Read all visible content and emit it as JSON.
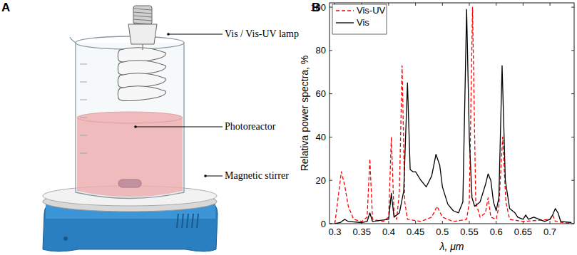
{
  "panel_labels": [
    "A",
    "B"
  ],
  "diagram": {
    "labels": [
      "Vis / Vis-UV lamp",
      "Photoreactor",
      "Magnetic stirrer"
    ]
  },
  "chart_data": {
    "type": "line",
    "x_label": "λ, μm",
    "y_label": "Relativa power spectra, %",
    "xlim": [
      0.29,
      0.745
    ],
    "ylim": [
      0,
      102
    ],
    "xticks": [
      0.3,
      0.35,
      0.4,
      0.45,
      0.5,
      0.55,
      0.6,
      0.65,
      0.7
    ],
    "yticks": [
      0,
      20,
      40,
      60,
      80,
      100
    ],
    "legend": "upper left",
    "grid": false,
    "series": [
      {
        "name": "Vis-UV",
        "color": "#ff0000",
        "line_style": "dashed",
        "x": [
          0.3,
          0.305,
          0.312,
          0.318,
          0.325,
          0.335,
          0.35,
          0.36,
          0.365,
          0.37,
          0.39,
          0.4,
          0.405,
          0.41,
          0.415,
          0.42,
          0.425,
          0.43,
          0.435,
          0.46,
          0.48,
          0.49,
          0.5,
          0.52,
          0.545,
          0.55,
          0.556,
          0.562,
          0.57,
          0.58,
          0.585,
          0.59,
          0.6,
          0.605,
          0.612,
          0.618,
          0.625,
          0.65,
          0.7,
          0.705,
          0.71,
          0.74
        ],
        "values": [
          0,
          10,
          24,
          18,
          8,
          2,
          1,
          3,
          30,
          2,
          1,
          3,
          40,
          4,
          2,
          15,
          73,
          10,
          2,
          1,
          3,
          8,
          3,
          1,
          2,
          10,
          100,
          10,
          3,
          5,
          12,
          3,
          2,
          8,
          40,
          10,
          2,
          1,
          2,
          4,
          1,
          0
        ]
      },
      {
        "name": "Vis",
        "color": "#000000",
        "line_style": "solid",
        "x": [
          0.3,
          0.31,
          0.318,
          0.325,
          0.35,
          0.36,
          0.365,
          0.37,
          0.4,
          0.405,
          0.41,
          0.42,
          0.428,
          0.435,
          0.44,
          0.445,
          0.45,
          0.46,
          0.47,
          0.48,
          0.488,
          0.495,
          0.5,
          0.51,
          0.52,
          0.53,
          0.538,
          0.545,
          0.55,
          0.555,
          0.56,
          0.57,
          0.58,
          0.585,
          0.59,
          0.595,
          0.6,
          0.605,
          0.611,
          0.617,
          0.625,
          0.635,
          0.64,
          0.65,
          0.655,
          0.66,
          0.67,
          0.68,
          0.69,
          0.7,
          0.705,
          0.71,
          0.715,
          0.72,
          0.74
        ],
        "values": [
          0,
          0.5,
          2,
          1,
          0.5,
          1,
          5,
          1,
          2,
          14,
          3,
          5,
          15,
          65,
          25,
          24,
          24,
          20,
          17,
          22,
          32,
          27,
          17,
          9,
          6,
          5,
          10,
          99,
          40,
          12,
          8,
          10,
          18,
          23,
          20,
          10,
          6,
          12,
          73,
          20,
          7,
          5,
          3,
          2,
          4,
          2,
          3,
          2,
          1,
          2,
          4,
          7,
          5,
          1,
          0.5
        ]
      }
    ]
  }
}
